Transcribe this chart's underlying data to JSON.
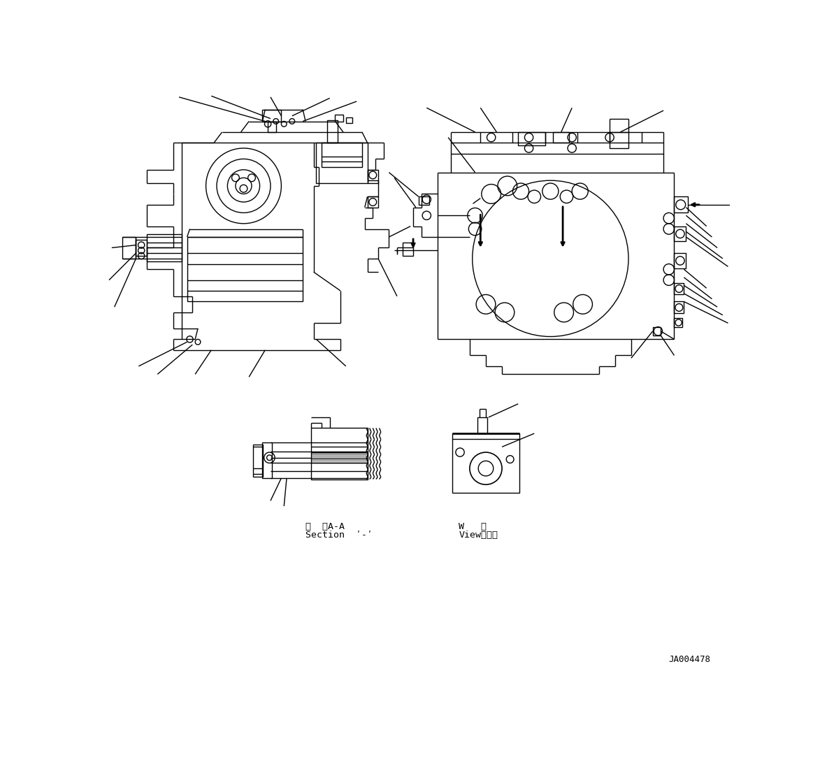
{
  "bg_color": "#ffffff",
  "lc": "#000000",
  "lw": 1.0,
  "fig_w": 11.63,
  "fig_h": 10.93,
  "dpi": 100,
  "label_aa_line1": "断  面A-A",
  "label_aa_line2": "Section  ʹ-ʹ",
  "label_w_line1": "W   視",
  "label_w_line2": "Viewʺʺʺ",
  "ref_code": "JA004478"
}
